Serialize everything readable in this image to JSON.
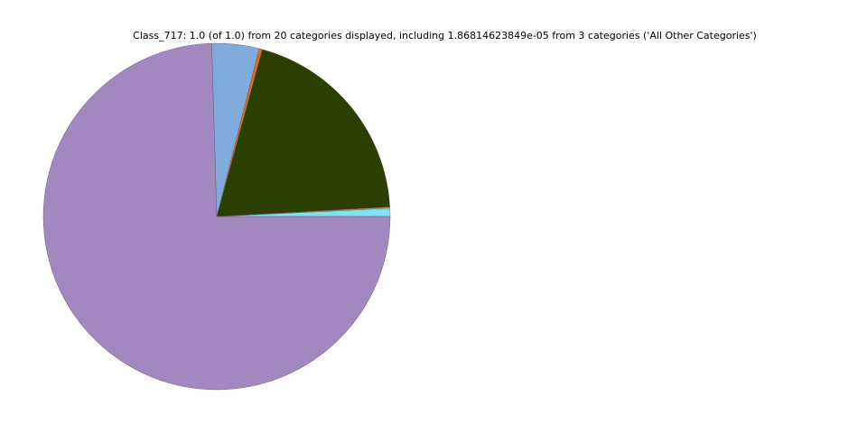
{
  "chart_data": {
    "type": "pie",
    "title": "Class_717: 1.0 (of 1.0) from 20 categories displayed, including 1.86814623849e-05 from 3 categories ('All Other Categories')",
    "start_angle_deg": 0,
    "direction": "counterclockwise",
    "slices": [
      {
        "value": 0.0075,
        "color": "#7fe3f0"
      },
      {
        "value": 0.0012,
        "color": "#f0a080"
      },
      {
        "value": 0.199,
        "color": "#2b3f00"
      },
      {
        "value": 0.003,
        "color": "#e86a0a"
      },
      {
        "value": 0.044,
        "color": "#80acdc"
      },
      {
        "value": 0.7453,
        "color": "#a387bf"
      }
    ]
  }
}
